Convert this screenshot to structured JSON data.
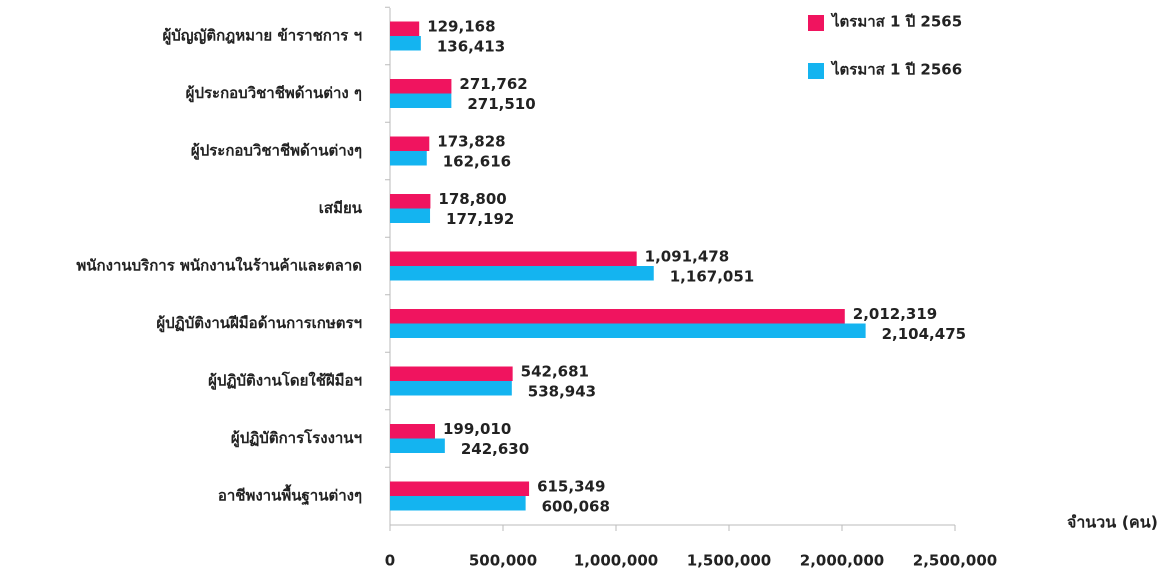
{
  "chart_data": {
    "type": "bar",
    "orientation": "horizontal",
    "categories": [
      "ผู้บัญญัติกฎหมาย ข้าราชการ ฯ",
      "ผู้ประกอบวิชาชีพด้านต่าง ๆ",
      "ผู้ประกอบวิชาชีพด้านต่างๆ",
      "เสมียน",
      "พนักงานบริการ พนักงานในร้านค้าและตลาด",
      "ผู้ปฏิบัติงานฝีมือด้านการเกษตรฯ",
      "ผู้ปฏิบัติงานโดยใช้ฝีมือฯ",
      "ผู้ปฏิบัติการโรงงานฯ",
      "อาชีพงานพื้นฐานต่างๆ"
    ],
    "series": [
      {
        "name": "ไตรมาส 1 ปี 2565",
        "color": "#f0145f",
        "values": [
          129168,
          271762,
          173828,
          178800,
          1091478,
          2012319,
          542681,
          199010,
          615349
        ],
        "value_labels": [
          "129,168",
          "271,762",
          "173,828",
          "178,800",
          "1,091,478",
          "2,012,319",
          "542,681",
          "199,010",
          "615,349"
        ]
      },
      {
        "name": "ไตรมาส 1 ปี 2566",
        "color": "#14b4f0",
        "values": [
          136413,
          271510,
          162616,
          177192,
          1167051,
          2104475,
          538943,
          242630,
          600068
        ],
        "value_labels": [
          "136,413",
          "271,510",
          "162,616",
          "177,192",
          "1,167,051",
          "2,104,475",
          "538,943",
          "242,630",
          "600,068"
        ]
      }
    ],
    "x_label": "จำนวน (คน)",
    "xlim": [
      0,
      2500000
    ],
    "xticks": [
      0,
      {
        "value": 500000,
        "label": "500,000"
      },
      {
        "value": 1000000,
        "label": "1,000,000"
      },
      {
        "value": 1500000,
        "label": "1,500,000"
      },
      {
        "value": 2000000,
        "label": "2,000,000"
      },
      {
        "value": 2500000,
        "label": "2,500,000"
      }
    ],
    "legend": "top-right"
  }
}
